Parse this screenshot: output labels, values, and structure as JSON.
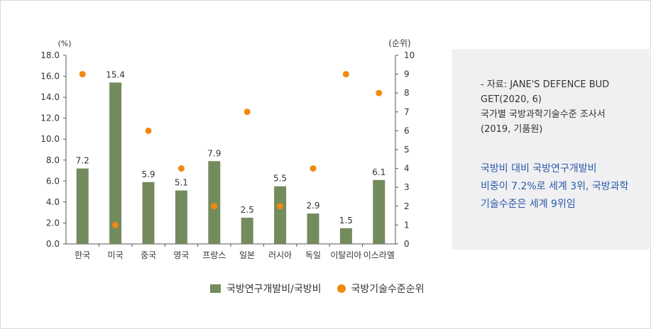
{
  "chart_data": {
    "type": "bar",
    "categories": [
      "한국",
      "미국",
      "중국",
      "영국",
      "프랑스",
      "일본",
      "러시아",
      "독일",
      "이탈리아",
      "이스라엘"
    ],
    "series": [
      {
        "name": "국방연구개발비/국방비",
        "type": "bar",
        "axis": "left",
        "color": "#748b5d",
        "values": [
          7.2,
          15.4,
          5.9,
          5.1,
          7.9,
          2.5,
          5.5,
          2.9,
          1.5,
          6.1
        ],
        "data_labels": [
          "7.2",
          "15.4",
          "5.9",
          "5.1",
          "7.9",
          "2.5",
          "5.5",
          "2.9",
          "1.5",
          "6.1"
        ]
      },
      {
        "name": "국방기술수준순위",
        "type": "scatter",
        "axis": "right",
        "color": "#f08a10",
        "values": [
          9,
          1,
          6,
          4,
          2,
          7,
          2,
          4,
          9,
          8
        ]
      }
    ],
    "y_left": {
      "unit": "(%)",
      "range": [
        0,
        18
      ],
      "ticks": [
        0,
        2,
        4,
        6,
        8,
        10,
        12,
        14,
        16,
        18
      ],
      "tick_labels": [
        "0.0",
        "2.0",
        "4.0",
        "6.0",
        "8.0",
        "10.0",
        "12.0",
        "14.0",
        "16.0",
        "18.0"
      ]
    },
    "y_right": {
      "unit": "(순위)",
      "range": [
        0,
        10
      ],
      "ticks": [
        0,
        1,
        2,
        3,
        4,
        5,
        6,
        7,
        8,
        9,
        10
      ],
      "tick_labels": [
        "0",
        "1",
        "2",
        "3",
        "4",
        "5",
        "6",
        "7",
        "8",
        "9",
        "10"
      ]
    },
    "grid": false,
    "legend_position": "bottom"
  },
  "legend": {
    "bar_label": "국방연구개발비/국방비",
    "dot_label": "국방기술수준순위"
  },
  "side_panel": {
    "source_lines": [
      "- 자료: JANE'S DEFENCE BUD",
      "GET(2020, 6)",
      "국가별 국방과학기술수준 조사서",
      "(2019, 기품원)"
    ],
    "note_lines": [
      "국방비 대비 국방연구개발비",
      "비중이 7.2%로 세계 3위, 국방과학",
      "기술수준은 세계 9위임"
    ]
  }
}
